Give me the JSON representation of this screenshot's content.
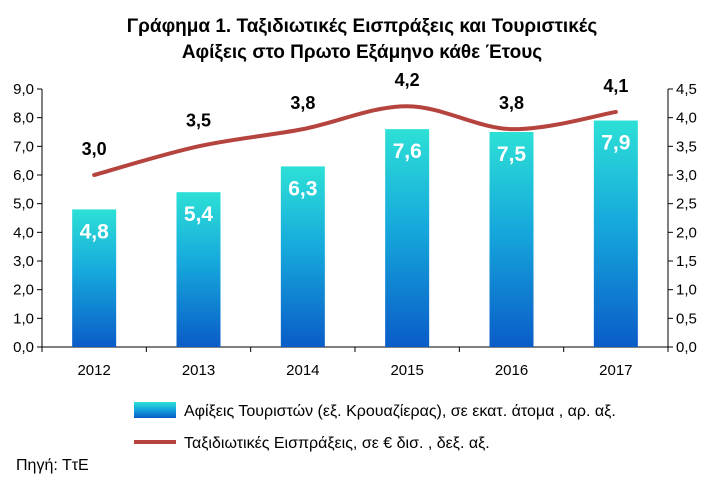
{
  "chart_data": {
    "type": "bar",
    "title_line1": "Γράφημα 1. Ταξιδιωτικές Εισπράξεις και Τουριστικές",
    "title_line2": "Αφίξεις στο Πρωτο Εξάμηνο κάθε Έτους",
    "categories": [
      "2012",
      "2013",
      "2014",
      "2015",
      "2016",
      "2017"
    ],
    "series": [
      {
        "name": "Αφίξεις Τουριστών (εξ. Κρουαζίερας), σε εκατ. άτομα , αρ. αξ.",
        "type": "bar",
        "axis": "left",
        "values": [
          4.8,
          5.4,
          6.3,
          7.6,
          7.5,
          7.9
        ],
        "labels": [
          "4,8",
          "5,4",
          "6,3",
          "7,6",
          "7,5",
          "7,9"
        ]
      },
      {
        "name": "Ταξιδιωτικές Εισπράξεις, σε € δισ. , δεξ. αξ.",
        "type": "line",
        "axis": "right",
        "values": [
          3.0,
          3.5,
          3.8,
          4.2,
          3.8,
          4.1
        ],
        "labels": [
          "3,0",
          "3,5",
          "3,8",
          "4,2",
          "3,8",
          "4,1"
        ]
      }
    ],
    "y_left": {
      "range": [
        0,
        9
      ],
      "ticks": [
        "0,0",
        "1,0",
        "2,0",
        "3,0",
        "4,0",
        "5,0",
        "6,0",
        "7,0",
        "8,0",
        "9,0"
      ]
    },
    "y_right": {
      "range": [
        0,
        4.5
      ],
      "ticks": [
        "0,0",
        "0,5",
        "1,0",
        "1,5",
        "2,0",
        "2,5",
        "3,0",
        "3,5",
        "4,0",
        "4,5"
      ]
    },
    "grid": false,
    "legend_position": "bottom",
    "source": "Πηγή: ΤτΕ",
    "colors": {
      "bar_top": "#2de0d6",
      "bar_bottom": "#0a5cc8",
      "line": "#b5443f",
      "axis": "#000000"
    }
  }
}
